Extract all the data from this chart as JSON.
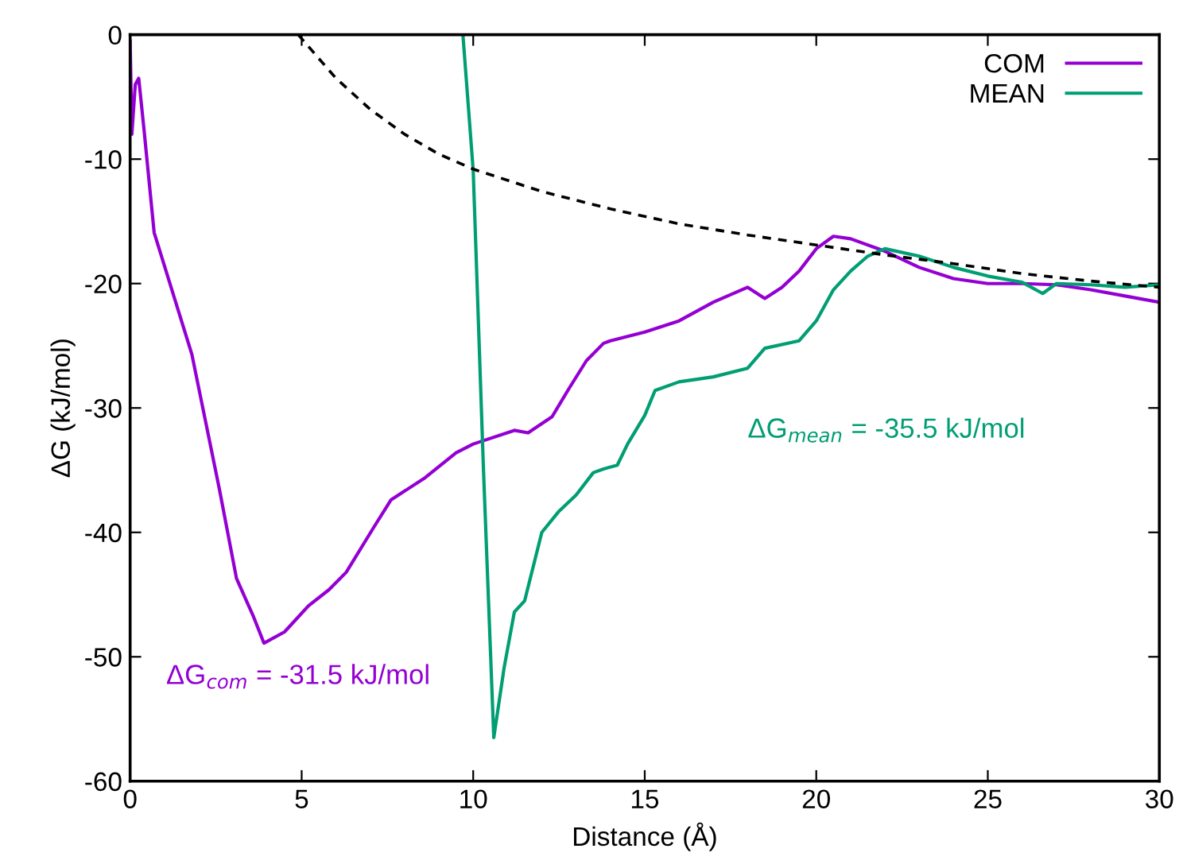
{
  "chart_data": {
    "type": "line",
    "xlabel": "Distance (Å)",
    "ylabel": "ΔG (kJ/mol)",
    "xlim": [
      0,
      30
    ],
    "ylim": [
      -60,
      0
    ],
    "xticks": [
      0,
      5,
      10,
      15,
      20,
      25,
      30
    ],
    "yticks": [
      -60,
      -50,
      -40,
      -30,
      -20,
      -10,
      0
    ],
    "grid": false,
    "legend": "top right",
    "marker": "none",
    "series": [
      {
        "name": "COM",
        "color": "#9400d3",
        "x": [
          0,
          0.05,
          0.15,
          0.25,
          0.4,
          0.7,
          1.8,
          2.6,
          3.1,
          3.6,
          3.9,
          4.5,
          5.2,
          5.8,
          6.3,
          7.1,
          7.6,
          8.6,
          9.5,
          10,
          11.2,
          11.6,
          12.3,
          12.8,
          13.3,
          13.8,
          14,
          15,
          16,
          17,
          18,
          18.5,
          19,
          19.5,
          20,
          20.5,
          21,
          22,
          23,
          24,
          25,
          26,
          27,
          28,
          29,
          30
        ],
        "values": [
          -0.5,
          -8,
          -4,
          -3.5,
          -7.5,
          -15.9,
          -25.7,
          -36.5,
          -43.7,
          -46.8,
          -48.9,
          -48,
          -45.9,
          -44.6,
          -43.2,
          -39.6,
          -37.4,
          -35.6,
          -33.6,
          -32.9,
          -31.8,
          -32,
          -30.7,
          -28.4,
          -26.2,
          -24.8,
          -24.6,
          -23.9,
          -23,
          -21.5,
          -20.3,
          -21.2,
          -20.3,
          -19,
          -17.2,
          -16.2,
          -16.4,
          -17.4,
          -18.7,
          -19.6,
          -20,
          -20,
          -20.1,
          -20.5,
          -21,
          -21.5
        ]
      },
      {
        "name": "MEAN",
        "color": "#009e73",
        "x": [
          9.7,
          10,
          10.3,
          10.6,
          10.9,
          11.2,
          11.5,
          12,
          12.5,
          13,
          13.5,
          13.8,
          14.2,
          14.5,
          15,
          15.3,
          16,
          17,
          18,
          18.5,
          19.5,
          20,
          20.5,
          21,
          21.5,
          22,
          23,
          24,
          25,
          26,
          26.6,
          27,
          28,
          29,
          30
        ],
        "values": [
          0,
          -10.9,
          -35,
          -56.5,
          -50.9,
          -46.4,
          -45.5,
          -40,
          -38.3,
          -37,
          -35.2,
          -34.9,
          -34.6,
          -32.9,
          -30.6,
          -28.6,
          -27.9,
          -27.5,
          -26.8,
          -25.2,
          -24.6,
          -23,
          -20.5,
          -19,
          -17.8,
          -17.2,
          -17.8,
          -18.7,
          -19.4,
          -19.9,
          -20.8,
          -20,
          -20.1,
          -20.3,
          -20.1
        ]
      },
      {
        "color": "#000000",
        "line_style": "dashed",
        "x": [
          4.9,
          6,
          7,
          8,
          9,
          10,
          12,
          14,
          16,
          18,
          20,
          22,
          24,
          26,
          28,
          30
        ],
        "values": [
          0,
          -3.5,
          -6,
          -8,
          -9.6,
          -10.8,
          -12.6,
          -14,
          -15.2,
          -16.1,
          -16.9,
          -17.7,
          -18.4,
          -19.2,
          -19.8,
          -20.3
        ]
      }
    ],
    "annotations": [
      "ΔG$_{com}$ = -31.5 kJ/mol",
      "ΔG$_{mean}$ = -35.5 kJ/mol"
    ]
  }
}
